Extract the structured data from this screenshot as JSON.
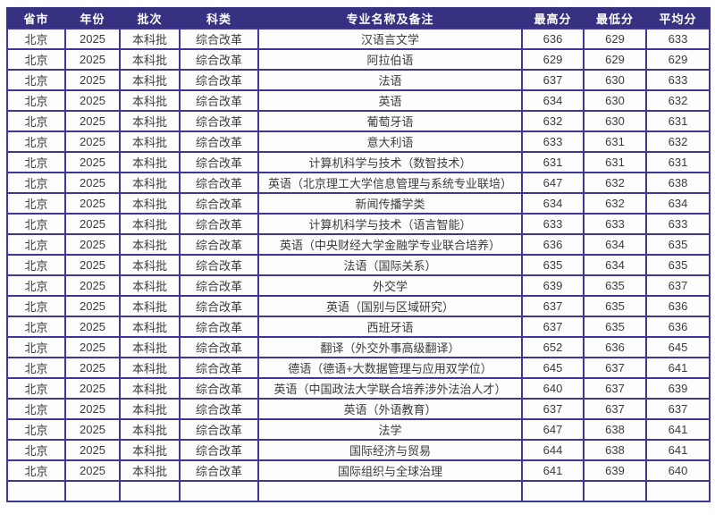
{
  "colors": {
    "header_bg": "#363181",
    "border": "#3e3699",
    "header_text": "#ffffff",
    "body_text": "#3b3b3b",
    "row_bg": "#fdfdfd",
    "page_bg": "#ffffff"
  },
  "table": {
    "headers": [
      "省市",
      "年份",
      "批次",
      "科类",
      "专业名称及备注",
      "最高分",
      "最低分",
      "平均分"
    ],
    "rows": [
      [
        "北京",
        "2025",
        "本科批",
        "综合改革",
        "汉语言文学",
        "636",
        "629",
        "633"
      ],
      [
        "北京",
        "2025",
        "本科批",
        "综合改革",
        "阿拉伯语",
        "629",
        "629",
        "629"
      ],
      [
        "北京",
        "2025",
        "本科批",
        "综合改革",
        "法语",
        "637",
        "630",
        "633"
      ],
      [
        "北京",
        "2025",
        "本科批",
        "综合改革",
        "英语",
        "634",
        "630",
        "632"
      ],
      [
        "北京",
        "2025",
        "本科批",
        "综合改革",
        "葡萄牙语",
        "632",
        "630",
        "631"
      ],
      [
        "北京",
        "2025",
        "本科批",
        "综合改革",
        "意大利语",
        "633",
        "631",
        "632"
      ],
      [
        "北京",
        "2025",
        "本科批",
        "综合改革",
        "计算机科学与技术（数智技术）",
        "631",
        "631",
        "631"
      ],
      [
        "北京",
        "2025",
        "本科批",
        "综合改革",
        "英语（北京理工大学信息管理与系统专业联培）",
        "647",
        "632",
        "638"
      ],
      [
        "北京",
        "2025",
        "本科批",
        "综合改革",
        "新闻传播学类",
        "634",
        "632",
        "634"
      ],
      [
        "北京",
        "2025",
        "本科批",
        "综合改革",
        "计算机科学与技术（语言智能）",
        "633",
        "633",
        "633"
      ],
      [
        "北京",
        "2025",
        "本科批",
        "综合改革",
        "英语（中央财经大学金融学专业联合培养）",
        "636",
        "634",
        "635"
      ],
      [
        "北京",
        "2025",
        "本科批",
        "综合改革",
        "法语（国际关系）",
        "635",
        "634",
        "635"
      ],
      [
        "北京",
        "2025",
        "本科批",
        "综合改革",
        "外交学",
        "639",
        "635",
        "637"
      ],
      [
        "北京",
        "2025",
        "本科批",
        "综合改革",
        "英语（国别与区域研究）",
        "637",
        "635",
        "636"
      ],
      [
        "北京",
        "2025",
        "本科批",
        "综合改革",
        "西班牙语",
        "637",
        "635",
        "636"
      ],
      [
        "北京",
        "2025",
        "本科批",
        "综合改革",
        "翻译（外交外事高级翻译）",
        "652",
        "636",
        "645"
      ],
      [
        "北京",
        "2025",
        "本科批",
        "综合改革",
        "德语（德语+大数据管理与应用双学位）",
        "645",
        "637",
        "641"
      ],
      [
        "北京",
        "2025",
        "本科批",
        "综合改革",
        "英语（中国政法大学联合培养涉外法治人才）",
        "640",
        "637",
        "639"
      ],
      [
        "北京",
        "2025",
        "本科批",
        "综合改革",
        "英语（外语教育）",
        "637",
        "637",
        "637"
      ],
      [
        "北京",
        "2025",
        "本科批",
        "综合改革",
        "法学",
        "647",
        "638",
        "641"
      ],
      [
        "北京",
        "2025",
        "本科批",
        "综合改革",
        "国际经济与贸易",
        "644",
        "638",
        "641"
      ],
      [
        "北京",
        "2025",
        "本科批",
        "综合改革",
        "国际组织与全球治理",
        "641",
        "639",
        "640"
      ]
    ]
  }
}
